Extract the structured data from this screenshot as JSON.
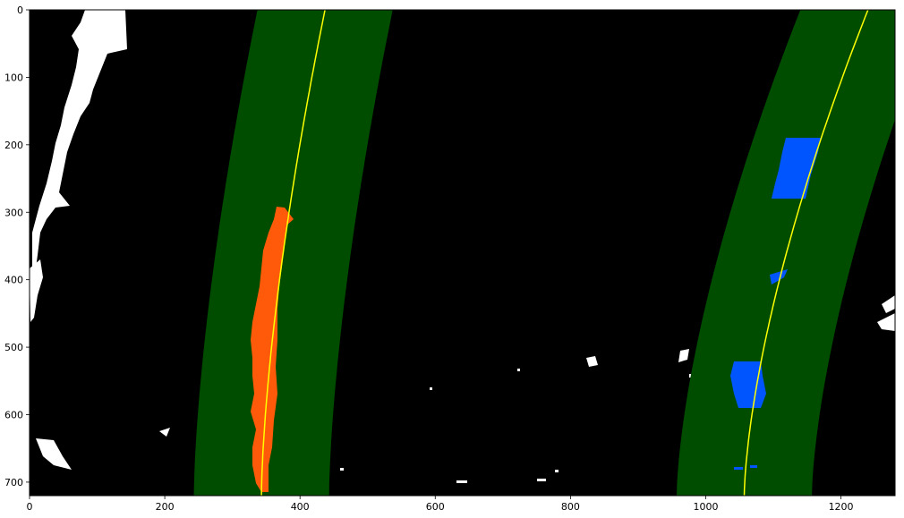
{
  "image": {
    "description_none": "",
    "x_ticks": [
      "0",
      "200",
      "400",
      "600",
      "800",
      "1000",
      "1200"
    ],
    "y_ticks": [
      "0",
      "100",
      "200",
      "300",
      "400",
      "500",
      "600",
      "700"
    ],
    "x_tick_values": [
      0,
      200,
      400,
      600,
      800,
      1000,
      1200
    ],
    "y_tick_values": [
      0,
      100,
      200,
      300,
      400,
      500,
      600,
      700
    ],
    "x_range": [
      0,
      1280
    ],
    "y_range": [
      0,
      720
    ],
    "y_inverted": true,
    "colors": {
      "background": "#000000",
      "lane_band": "#004d00",
      "fit_line": "#ffff00",
      "left_lane_pixels": "#ff5a0a",
      "right_lane_pixels": "#0055ff",
      "noise": "#ffffff",
      "frame": "#000000"
    },
    "left_lane_fit": {
      "x_at_y0": 437,
      "x_at_y720": 343
    },
    "right_lane_fit": {
      "x_at_y0": 1240,
      "x_at_y720": 1057
    },
    "lane_band_half_width": 100
  }
}
